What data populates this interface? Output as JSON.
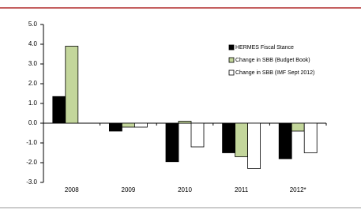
{
  "chart_data": {
    "type": "bar",
    "categories": [
      "2008",
      "2009",
      "2010",
      "2011",
      "2012*"
    ],
    "series": [
      {
        "name": "HERMES Fiscal Stance",
        "color": "#000000",
        "values": [
          1.35,
          -0.4,
          -1.95,
          -1.5,
          -1.8
        ]
      },
      {
        "name": "Change in SBB (Budget Book)",
        "color": "#c3d69b",
        "values": [
          3.9,
          -0.2,
          0.1,
          -1.7,
          -0.4
        ]
      },
      {
        "name": "Change in SBB (IMF Sept 2012)",
        "color": "#ffffff",
        "values": [
          null,
          -0.2,
          -1.2,
          -2.3,
          -1.5
        ]
      }
    ],
    "ylim": [
      -3,
      5
    ],
    "yticks": [
      {
        "value": -3,
        "label": "-3.0"
      },
      {
        "value": -2,
        "label": "-2.0"
      },
      {
        "value": -1,
        "label": "-1.0"
      },
      {
        "value": 0,
        "label": "0.0"
      },
      {
        "value": 1,
        "label": "1.0"
      },
      {
        "value": 2,
        "label": "2.0"
      },
      {
        "value": 3,
        "label": "3.0"
      },
      {
        "value": 4,
        "label": "4.0"
      },
      {
        "value": 5,
        "label": "5.0"
      }
    ],
    "grid": false
  }
}
